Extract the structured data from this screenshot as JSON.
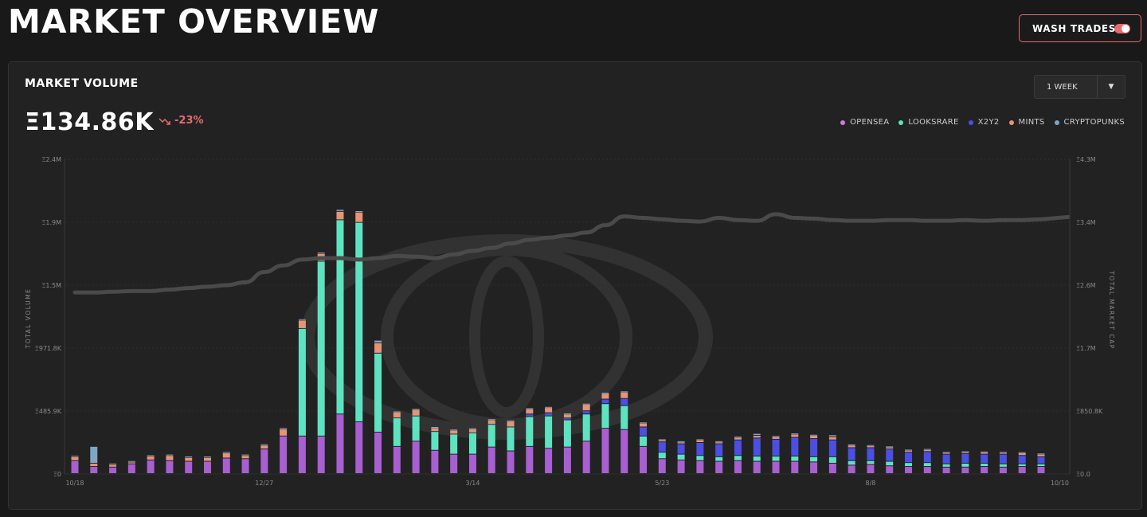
{
  "header": {
    "title": "MARKET OVERVIEW",
    "wash_trades_label": "WASH TRADES",
    "wash_trades_enabled": true
  },
  "card": {
    "title": "MARKET VOLUME",
    "total_volume": "Ξ134.86K",
    "change": "-23%",
    "change_icon": "trend-down-icon",
    "range_selected": "1 WEEK"
  },
  "colors": {
    "background": "#191919",
    "card": "#222222",
    "accent_red": "#e56b6f",
    "opensea": "#a85fd1",
    "looksrare": "#5ee3c0",
    "x2y2": "#4b4fe3",
    "mints": "#e69478",
    "cryptopunks": "#7ea6c9",
    "market_cap_line": "#4a4a4a"
  },
  "chart_data": {
    "type": "bar",
    "left_axis_label": "TOTAL VOLUME",
    "right_axis_label": "TOTAL MARKET CAP",
    "left_ticks": [
      "Ξ0",
      "Ξ485.9K",
      "Ξ971.8K",
      "Ξ1.5M",
      "Ξ1.9M",
      "Ξ2.4M"
    ],
    "right_ticks": [
      "Ξ0.0",
      "Ξ850.8K",
      "Ξ1.7M",
      "Ξ2.6M",
      "Ξ3.4M",
      "Ξ4.3M"
    ],
    "x_tick_labels": [
      "10/18",
      "12/27",
      "3/14",
      "5/23",
      "8/8",
      "10/10"
    ],
    "ylim_left": [
      0,
      2430000
    ],
    "ylim_right": [
      0,
      4300000
    ],
    "grid": true,
    "legend_position": "top-right",
    "series": [
      {
        "name": "OPENSEA",
        "values": [
          100000,
          55000,
          50000,
          75000,
          105000,
          100000,
          95000,
          95000,
          120000,
          115000,
          190000,
          290000,
          290000,
          290000,
          460000,
          400000,
          320000,
          210000,
          250000,
          180000,
          150000,
          150000,
          205000,
          175000,
          210000,
          195000,
          205000,
          250000,
          350000,
          340000,
          210000,
          115000,
          105000,
          100000,
          95000,
          100000,
          95000,
          95000,
          95000,
          90000,
          80000,
          65000,
          70000,
          60000,
          55000,
          55000,
          50000,
          50000,
          55000,
          50000,
          55000,
          55000
        ]
      },
      {
        "name": "LOOKSRARE",
        "values": [
          0,
          0,
          0,
          0,
          0,
          0,
          0,
          0,
          0,
          0,
          0,
          0,
          830000,
          1350000,
          1500000,
          1540000,
          610000,
          220000,
          195000,
          145000,
          155000,
          165000,
          175000,
          185000,
          230000,
          250000,
          210000,
          210000,
          190000,
          185000,
          80000,
          50000,
          45000,
          40000,
          35000,
          40000,
          40000,
          40000,
          40000,
          40000,
          50000,
          35000,
          30000,
          35000,
          30000,
          30000,
          25000,
          30000,
          25000,
          25000,
          20000,
          20000
        ]
      },
      {
        "name": "X2Y2",
        "values": [
          0,
          0,
          0,
          0,
          0,
          0,
          0,
          0,
          0,
          0,
          0,
          0,
          0,
          0,
          0,
          0,
          0,
          0,
          0,
          0,
          0,
          0,
          0,
          0,
          20000,
          25000,
          15000,
          25000,
          35000,
          55000,
          70000,
          80000,
          80000,
          100000,
          100000,
          120000,
          140000,
          130000,
          145000,
          140000,
          130000,
          100000,
          100000,
          95000,
          80000,
          85000,
          75000,
          75000,
          70000,
          75000,
          65000,
          55000
        ]
      },
      {
        "name": "MINTS",
        "values": [
          30000,
          25000,
          20000,
          15000,
          30000,
          40000,
          30000,
          30000,
          40000,
          25000,
          30000,
          55000,
          65000,
          60000,
          65000,
          80000,
          80000,
          45000,
          50000,
          30000,
          30000,
          30000,
          35000,
          45000,
          40000,
          40000,
          30000,
          50000,
          45000,
          50000,
          30000,
          15000,
          15000,
          20000,
          15000,
          20000,
          20000,
          20000,
          25000,
          25000,
          25000,
          20000,
          15000,
          15000,
          15000,
          15000,
          12000,
          12000,
          15000,
          12000,
          20000,
          20000
        ]
      },
      {
        "name": "CRYPTOPUNKS",
        "values": [
          10000,
          130000,
          10000,
          10000,
          10000,
          10000,
          10000,
          10000,
          10000,
          10000,
          10000,
          10000,
          10000,
          10000,
          15000,
          10000,
          20000,
          8000,
          8000,
          8000,
          8000,
          8000,
          8000,
          8000,
          8000,
          8000,
          8000,
          8000,
          8000,
          8000,
          8000,
          8000,
          8000,
          8000,
          8000,
          8000,
          15000,
          8000,
          8000,
          8000,
          15000,
          8000,
          8000,
          8000,
          8000,
          8000,
          8000,
          8000,
          8000,
          8000,
          8000,
          8000
        ]
      },
      {
        "name": "TOTAL MARKET CAP",
        "values": [
          2480000,
          2480000,
          2490000,
          2500000,
          2500000,
          2520000,
          2540000,
          2560000,
          2580000,
          2620000,
          2760000,
          2850000,
          2930000,
          2950000,
          2950000,
          2930000,
          2950000,
          2980000,
          2970000,
          2950000,
          3000000,
          3050000,
          3090000,
          3150000,
          3200000,
          3230000,
          3260000,
          3300000,
          3400000,
          3520000,
          3500000,
          3480000,
          3460000,
          3450000,
          3500000,
          3470000,
          3460000,
          3550000,
          3500000,
          3490000,
          3470000,
          3460000,
          3460000,
          3470000,
          3470000,
          3460000,
          3460000,
          3470000,
          3460000,
          3470000,
          3470000,
          3480000
        ]
      }
    ]
  }
}
